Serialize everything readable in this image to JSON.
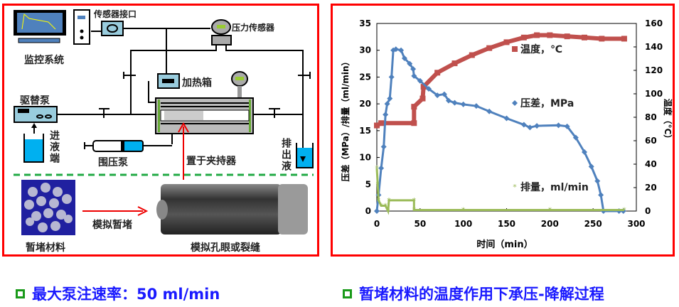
{
  "diagram": {
    "labels": {
      "monitor": "监控系统",
      "sensor_port": "传感器接口",
      "pressure_sensor": "压力传感器",
      "heating_box": "加热箱",
      "displacement_pump": "驱替泵",
      "inlet": "进液端",
      "confining_pump": "围压泵",
      "holder": "置于夹持器",
      "outlet": "排出液",
      "material": "暂堵材料",
      "simulate_plug": "模拟暂堵",
      "simulate_hole": "模拟孔眼或裂缝"
    }
  },
  "captions": {
    "left": "最大泵注速率：50 ml/min",
    "right": "暂堵材料的温度作用下承压-降解过程"
  },
  "chart_data": {
    "type": "line",
    "xlabel": "时间（min）",
    "ylabel": "压差（MPa）/排量（ml/min）",
    "y2label": "温度（°C）",
    "xlim": [
      0,
      300
    ],
    "ylim": [
      0,
      35
    ],
    "y2lim": [
      0,
      160
    ],
    "xticks": [
      0,
      50,
      100,
      150,
      200,
      250,
      300
    ],
    "yticks": [
      0,
      5,
      10,
      15,
      20,
      25,
      30,
      35
    ],
    "y2ticks": [
      0,
      20,
      40,
      60,
      80,
      100,
      120,
      140,
      160
    ],
    "grid": false,
    "series": [
      {
        "name": "温度，℃",
        "axis": "right",
        "color": "#c0504d",
        "marker": "square",
        "x": [
          0,
          5,
          43,
          43,
          53,
          54,
          70,
          90,
          110,
          130,
          150,
          170,
          185,
          200,
          220,
          240,
          260,
          286
        ],
        "y": [
          73,
          75,
          75,
          89,
          96,
          106,
          118,
          126,
          133,
          139,
          144,
          148,
          150,
          150,
          149,
          148,
          147,
          147
        ]
      },
      {
        "name": "压差，MPa",
        "axis": "left",
        "color": "#4f81bd",
        "marker": "diamond",
        "x": [
          0,
          2,
          5,
          8,
          10,
          12,
          15,
          17,
          19,
          22,
          28,
          32,
          38,
          42,
          43,
          50,
          60,
          70,
          78,
          83,
          90,
          100,
          115,
          130,
          150,
          170,
          177,
          185,
          210,
          220,
          230,
          240,
          248,
          255,
          259,
          262,
          280,
          285
        ],
        "y": [
          0,
          3,
          8,
          12,
          18,
          20,
          21,
          25,
          30,
          30.2,
          30,
          28.5,
          27.5,
          26.5,
          25.2,
          24.3,
          22.8,
          21.6,
          21.8,
          20.6,
          20.2,
          19.9,
          19.6,
          18.6,
          17.3,
          16.1,
          15.6,
          15.9,
          16,
          15.8,
          13.7,
          11,
          8.3,
          5.6,
          3,
          0,
          0,
          0
        ]
      },
      {
        "name": "排量，ml/min",
        "axis": "left",
        "color": "#9bbb59",
        "marker": "star",
        "x": [
          0,
          1,
          2,
          5,
          10,
          13,
          14,
          43,
          43,
          100,
          200,
          286
        ],
        "y": [
          8,
          5,
          2,
          1,
          1,
          0,
          2,
          2,
          0.2,
          0.2,
          0.2,
          0.2
        ]
      }
    ],
    "legend": "inside-right"
  }
}
